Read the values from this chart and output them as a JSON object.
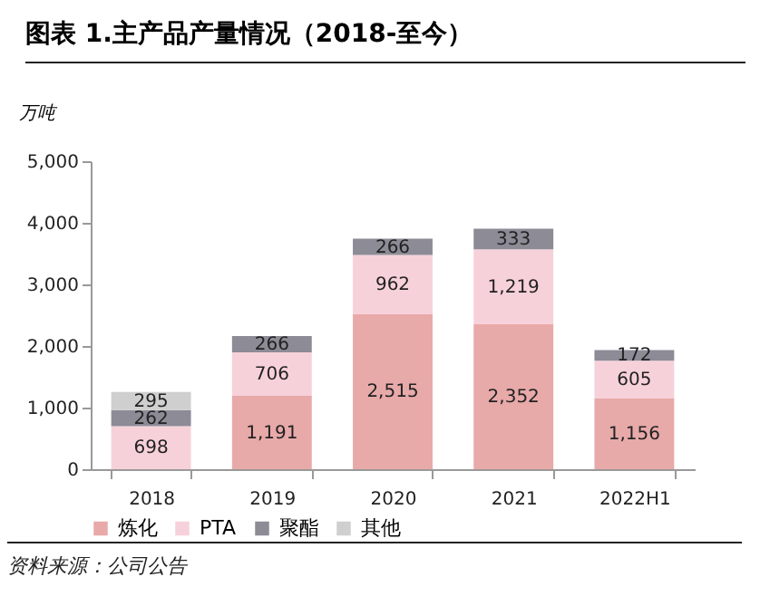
{
  "chart_data": {
    "type": "bar",
    "title": "图表 1.主产品产量情况（2018-至今）",
    "ylabel": "万吨",
    "stacked": true,
    "categories": [
      "2018",
      "2019",
      "2020",
      "2021",
      "2022H1"
    ],
    "series": [
      {
        "name": "炼化",
        "color": "#e8a9a9",
        "values": [
          null,
          1191,
          2515,
          2352,
          1156
        ],
        "value_labels": [
          null,
          "1,191",
          "2,515",
          "2,352",
          "1,156"
        ]
      },
      {
        "name": "PTA",
        "color": "#f7d1d9",
        "values": [
          698,
          706,
          962,
          1219,
          605
        ],
        "value_labels": [
          "698",
          "706",
          "962",
          "1,219",
          "605"
        ]
      },
      {
        "name": "聚酯",
        "color": "#8c8b96",
        "values": [
          262,
          266,
          266,
          333,
          172
        ],
        "value_labels": [
          "262",
          "266",
          "266",
          "333",
          "172"
        ]
      },
      {
        "name": "其他",
        "color": "#cfcfcf",
        "values": [
          295,
          null,
          null,
          null,
          null
        ],
        "value_labels": [
          "295",
          null,
          null,
          null,
          null
        ]
      }
    ],
    "ylim": [
      0,
      5000
    ],
    "yticks": [
      {
        "value": 0,
        "label": "0"
      },
      {
        "value": 1000,
        "label": "1,000"
      },
      {
        "value": 2000,
        "label": "2,000"
      },
      {
        "value": 3000,
        "label": "3,000"
      },
      {
        "value": 4000,
        "label": "4,000"
      },
      {
        "value": 5000,
        "label": "5,000"
      }
    ],
    "legend": "bottom",
    "annotations": [
      "资料来源：公司公告"
    ]
  }
}
